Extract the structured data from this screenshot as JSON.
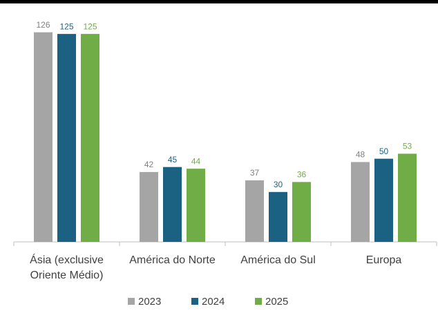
{
  "chart_data": {
    "type": "bar",
    "categories": [
      "Ásia (exclusive Oriente Médio)",
      "América do Norte",
      "América do Sul",
      "Europa"
    ],
    "series": [
      {
        "name": "2023",
        "color": "#a5a5a5",
        "values": [
          126,
          42,
          37,
          48
        ]
      },
      {
        "name": "2024",
        "color": "#1b6282",
        "values": [
          125,
          45,
          30,
          50
        ]
      },
      {
        "name": "2025",
        "color": "#70ad47",
        "values": [
          125,
          44,
          36,
          53
        ]
      }
    ],
    "ylim": [
      0,
      140
    ],
    "legend": "bottom"
  }
}
